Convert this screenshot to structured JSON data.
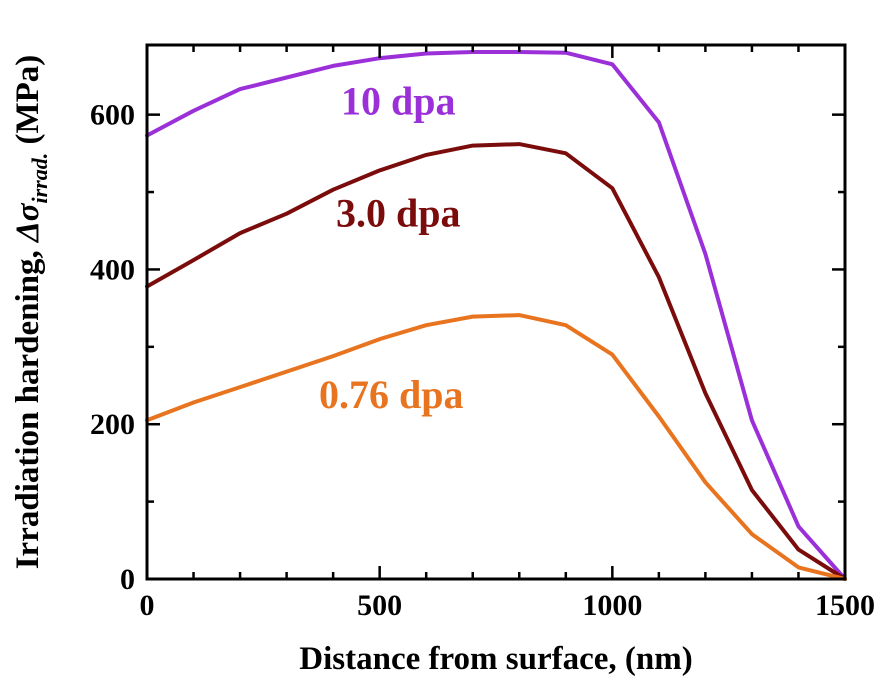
{
  "chart_data": {
    "type": "line",
    "title": "",
    "xlabel": "Distance from surface, (nm)",
    "ylabel": {
      "prefix": "Irradiation hardening, ",
      "symbol": "Δσ",
      "subscript": "irrad.",
      "suffix": " (MPa)"
    },
    "xlim": [
      0,
      1500
    ],
    "ylim": [
      0,
      690
    ],
    "x_ticks": [
      0,
      500,
      1000,
      1500
    ],
    "y_ticks": [
      0,
      200,
      400,
      600
    ],
    "x_tick_labels": [
      "0",
      "500",
      "1000",
      "1500"
    ],
    "y_tick_labels": [
      "0",
      "200",
      "400",
      "600"
    ],
    "grid": false,
    "series": [
      {
        "name": "10 dpa",
        "color": "#9b30d9",
        "x": [
          0,
          100,
          200,
          300,
          400,
          500,
          600,
          700,
          800,
          900,
          1000,
          1100,
          1200,
          1300,
          1400,
          1500
        ],
        "y": [
          573,
          605,
          633,
          648,
          663,
          673,
          679,
          681,
          681,
          680,
          665,
          590,
          420,
          205,
          68,
          0
        ]
      },
      {
        "name": "3.0 dpa",
        "color": "#7b0c0c",
        "x": [
          0,
          100,
          200,
          300,
          400,
          500,
          600,
          700,
          800,
          900,
          1000,
          1100,
          1200,
          1300,
          1400,
          1500
        ],
        "y": [
          378,
          412,
          447,
          472,
          503,
          528,
          548,
          560,
          562,
          550,
          505,
          390,
          240,
          115,
          38,
          0
        ]
      },
      {
        "name": "0.76 dpa",
        "color": "#e8741f",
        "x": [
          0,
          100,
          200,
          300,
          400,
          500,
          600,
          700,
          800,
          900,
          1000,
          1100,
          1200,
          1300,
          1400,
          1500
        ],
        "y": [
          205,
          228,
          248,
          268,
          288,
          310,
          328,
          339,
          341,
          328,
          290,
          210,
          125,
          58,
          15,
          0
        ]
      }
    ]
  }
}
